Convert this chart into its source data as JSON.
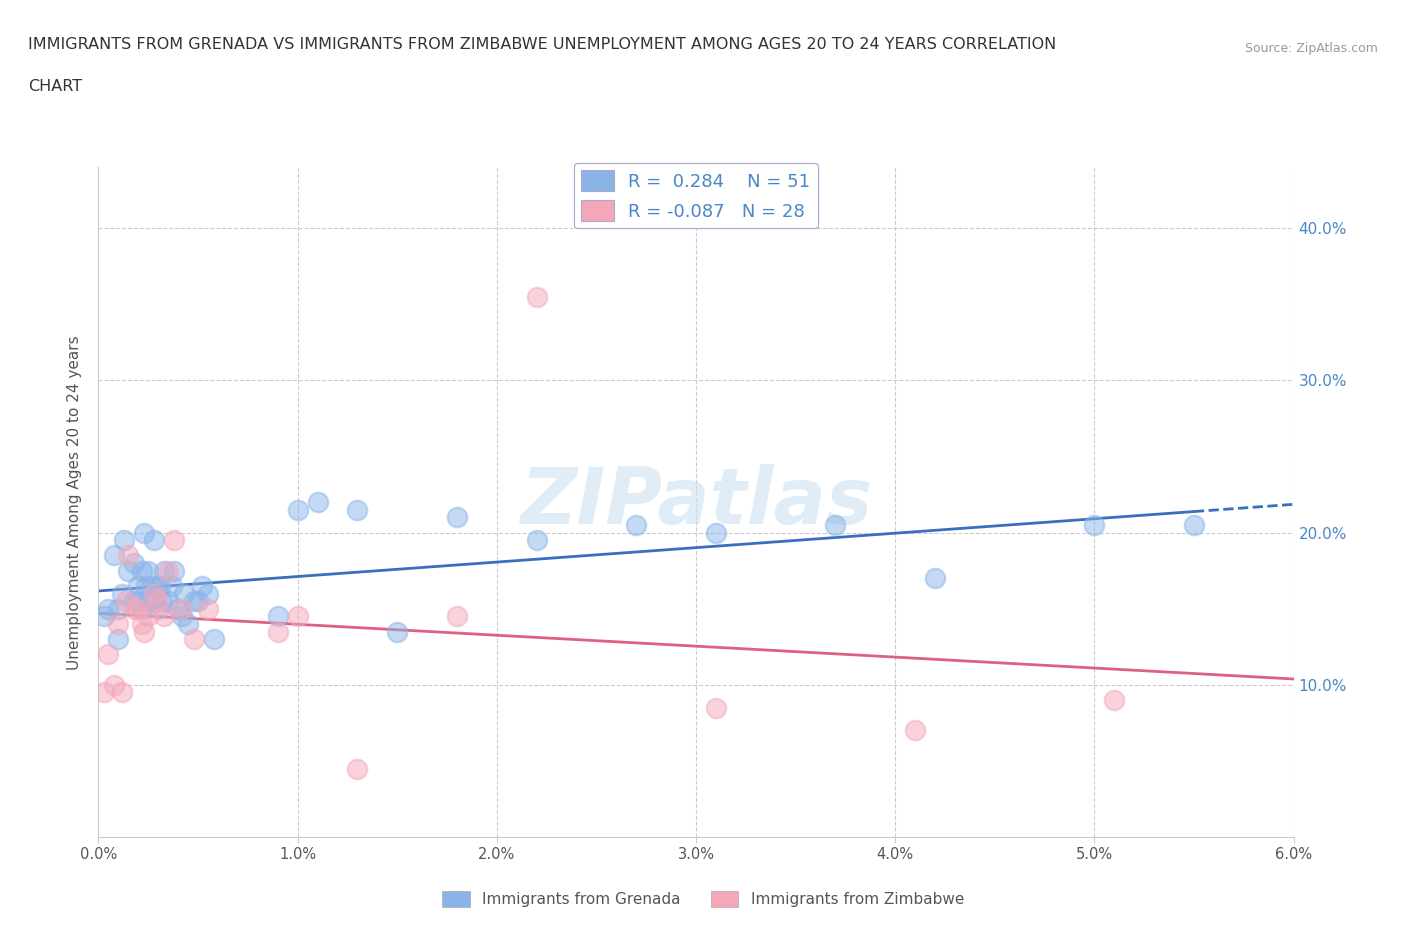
{
  "title_line1": "IMMIGRANTS FROM GRENADA VS IMMIGRANTS FROM ZIMBABWE UNEMPLOYMENT AMONG AGES 20 TO 24 YEARS CORRELATION",
  "title_line2": "CHART",
  "source_text": "Source: ZipAtlas.com",
  "ylabel": "Unemployment Among Ages 20 to 24 years",
  "xlim": [
    0.0,
    0.06
  ],
  "ylim": [
    0.0,
    0.44
  ],
  "xtick_vals": [
    0.0,
    0.01,
    0.02,
    0.03,
    0.04,
    0.05,
    0.06
  ],
  "xtick_labels": [
    "0.0%",
    "1.0%",
    "2.0%",
    "3.0%",
    "4.0%",
    "5.0%",
    "6.0%"
  ],
  "ytick_vals": [
    0.1,
    0.2,
    0.3,
    0.4
  ],
  "ytick_labels": [
    "10.0%",
    "20.0%",
    "30.0%",
    "40.0%"
  ],
  "grenada_color": "#8ab4e8",
  "zimbabwe_color": "#f4a7b9",
  "grenada_line_color": "#3a6fc0",
  "zimbabwe_line_color": "#e06080",
  "R_grenada": 0.284,
  "N_grenada": 51,
  "R_zimbabwe": -0.087,
  "N_zimbabwe": 28,
  "grenada_x": [
    0.0003,
    0.0005,
    0.0008,
    0.001,
    0.001,
    0.0012,
    0.0013,
    0.0015,
    0.0018,
    0.0018,
    0.002,
    0.002,
    0.0022,
    0.0022,
    0.0023,
    0.0024,
    0.0025,
    0.0025,
    0.0027,
    0.0028,
    0.0028,
    0.003,
    0.003,
    0.0031,
    0.0032,
    0.0033,
    0.0035,
    0.0037,
    0.0038,
    0.004,
    0.0042,
    0.0043,
    0.0045,
    0.0048,
    0.005,
    0.0052,
    0.0055,
    0.0058,
    0.009,
    0.01,
    0.011,
    0.013,
    0.015,
    0.018,
    0.022,
    0.027,
    0.031,
    0.037,
    0.042,
    0.05,
    0.055
  ],
  "grenada_y": [
    0.145,
    0.15,
    0.185,
    0.13,
    0.15,
    0.16,
    0.195,
    0.175,
    0.155,
    0.18,
    0.155,
    0.165,
    0.15,
    0.175,
    0.2,
    0.165,
    0.155,
    0.175,
    0.165,
    0.155,
    0.195,
    0.165,
    0.15,
    0.165,
    0.155,
    0.175,
    0.155,
    0.165,
    0.175,
    0.15,
    0.145,
    0.16,
    0.14,
    0.155,
    0.155,
    0.165,
    0.16,
    0.13,
    0.145,
    0.215,
    0.22,
    0.215,
    0.135,
    0.21,
    0.195,
    0.205,
    0.2,
    0.205,
    0.17,
    0.205,
    0.205
  ],
  "zimbabwe_x": [
    0.0003,
    0.0005,
    0.0008,
    0.001,
    0.0012,
    0.0014,
    0.0015,
    0.0018,
    0.002,
    0.0022,
    0.0023,
    0.0025,
    0.0028,
    0.003,
    0.0033,
    0.0035,
    0.0038,
    0.0042,
    0.0048,
    0.0055,
    0.009,
    0.01,
    0.013,
    0.018,
    0.022,
    0.031,
    0.041,
    0.051
  ],
  "zimbabwe_y": [
    0.095,
    0.12,
    0.1,
    0.14,
    0.095,
    0.155,
    0.185,
    0.15,
    0.15,
    0.14,
    0.135,
    0.145,
    0.16,
    0.155,
    0.145,
    0.175,
    0.195,
    0.15,
    0.13,
    0.15,
    0.135,
    0.145,
    0.045,
    0.145,
    0.355,
    0.085,
    0.07,
    0.09
  ],
  "background_color": "#ffffff",
  "grid_color": "#cccccc",
  "watermark_color": "#ddeeff"
}
